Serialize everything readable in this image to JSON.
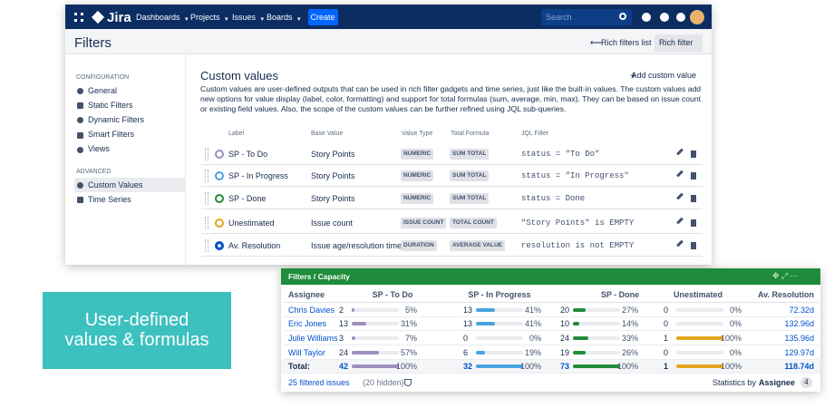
{
  "header": {
    "logo": "Jira",
    "nav": [
      "Dashboards",
      "Projects",
      "Issues",
      "Boards"
    ],
    "create": "Create",
    "search": "Search"
  },
  "page": {
    "title": "Filters",
    "links": [
      "Rich filters list",
      "Rich filter"
    ]
  },
  "sidebar": {
    "sections": [
      {
        "heading": "CONFIGURATION",
        "items": [
          "General",
          "Static Filters",
          "Dynamic Filters",
          "Smart Filters",
          "Views"
        ]
      },
      {
        "heading": "ADVANCED",
        "items": [
          "Custom Values",
          "Time Series"
        ]
      }
    ]
  },
  "custom_values": {
    "title": "Custom values",
    "add_button": "Add custom value",
    "description": "Custom values are user-defined outputs that can be used in rich filter gadgets and time series, just like the built-in values. The custom values add new options for value display (label, color, formatting) and support for total formulas (sum, average, min, max). They can be based on issue count or existing field values. Also, the scope of the custom values can be further refined using JQL sub-queries.",
    "columns": [
      "Label",
      "Base Value",
      "Value Type",
      "Total Formula",
      "JQL Filter"
    ],
    "rows": [
      {
        "label": "SP - To Do",
        "color": "#9f8fbf",
        "base": "Story Points",
        "type": "NUMERIC",
        "formula": "SUM TOTAL",
        "jql": "status = \"To Do\""
      },
      {
        "label": "SP - In Progress",
        "color": "#4aa3df",
        "base": "Story Points",
        "type": "NUMERIC",
        "formula": "SUM TOTAL",
        "jql": "status = \"In Progress\""
      },
      {
        "label": "SP - Done",
        "color": "#1e8c3a",
        "base": "Story Points",
        "type": "NUMERIC",
        "formula": "SUM TOTAL",
        "jql": "status = Done"
      },
      {
        "label": "Unestimated",
        "color": "#e3a51e",
        "base": "Issue count",
        "type": "ISSUE COUNT",
        "formula": "TOTAL COUNT",
        "jql": "\"Story Points\" is EMPTY"
      },
      {
        "label": "Av. Resolution",
        "color": "#0052cc",
        "base": "Issue age/resolution time",
        "type": "DURATION",
        "formula": "AVERAGE VALUE",
        "jql": "resolution is not EMPTY"
      }
    ]
  },
  "gadget": {
    "title": "Filters / Capacity",
    "columns": [
      "Assignee",
      "SP - To Do",
      "SP - In Progress",
      "SP - Done",
      "Unestimated",
      "Av. Resolution"
    ],
    "colors": [
      "#9f8fbf",
      "#4aa3df",
      "#1e8c3a",
      "#e3a51e"
    ],
    "rows": [
      {
        "assignee": "Chris Davies",
        "cells": [
          {
            "count": 2,
            "pct": 5,
            "pct_label": "5%"
          },
          {
            "count": 13,
            "pct": 41,
            "pct_label": "41%"
          },
          {
            "count": 20,
            "pct": 27,
            "pct_label": "27%"
          },
          {
            "count": 0,
            "pct": 0,
            "pct_label": "0%"
          }
        ],
        "resolution": "72.32d"
      },
      {
        "assignee": "Eric Jones",
        "cells": [
          {
            "count": 13,
            "pct": 31,
            "pct_label": "31%"
          },
          {
            "count": 13,
            "pct": 41,
            "pct_label": "41%"
          },
          {
            "count": 10,
            "pct": 14,
            "pct_label": "14%"
          },
          {
            "count": 0,
            "pct": 0,
            "pct_label": "0%"
          }
        ],
        "resolution": "132.96d"
      },
      {
        "assignee": "Julie Williams",
        "cells": [
          {
            "count": 3,
            "pct": 7,
            "pct_label": "7%"
          },
          {
            "count": 0,
            "pct": 0,
            "pct_label": "0%"
          },
          {
            "count": 24,
            "pct": 33,
            "pct_label": "33%"
          },
          {
            "count": 1,
            "pct": 100,
            "pct_label": "100%"
          }
        ],
        "resolution": "135.96d"
      },
      {
        "assignee": "Will Taylor",
        "cells": [
          {
            "count": 24,
            "pct": 57,
            "pct_label": "57%"
          },
          {
            "count": 6,
            "pct": 19,
            "pct_label": "19%"
          },
          {
            "count": 19,
            "pct": 26,
            "pct_label": "26%"
          },
          {
            "count": 0,
            "pct": 0,
            "pct_label": "0%"
          }
        ],
        "resolution": "129.97d"
      }
    ],
    "total": {
      "assignee": "Total:",
      "cells": [
        {
          "count": 42,
          "pct": 100,
          "pct_label": "100%"
        },
        {
          "count": 32,
          "pct": 100,
          "pct_label": "100%"
        },
        {
          "count": 73,
          "pct": 100,
          "pct_label": "100%"
        },
        {
          "count": 1,
          "pct": 100,
          "pct_label": "100%"
        }
      ],
      "resolution": "118.74d"
    },
    "footer": {
      "issues": "25 filtered issues",
      "hidden": "(20 hidden)",
      "stats": "Statistics by",
      "group": "Assignee",
      "count": 4
    }
  },
  "callout": [
    "User-defined",
    "values & formulas"
  ]
}
